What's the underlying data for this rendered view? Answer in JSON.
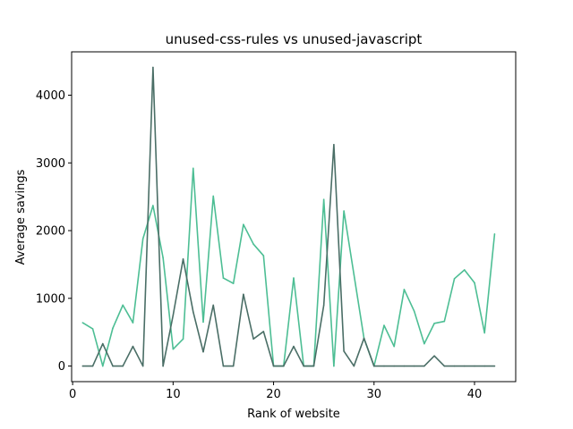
{
  "chart_data": {
    "type": "line",
    "title": "unused-css-rules vs unused-javascript",
    "xlabel": "Rank of website",
    "ylabel": "Average savings",
    "xlim": [
      -0.1,
      44.1
    ],
    "ylim": [
      -230,
      4640
    ],
    "xticks": [
      0,
      10,
      20,
      30,
      40
    ],
    "yticks": [
      0,
      1000,
      2000,
      3000,
      4000
    ],
    "grid": false,
    "x": [
      1,
      2,
      3,
      4,
      5,
      6,
      7,
      8,
      9,
      10,
      11,
      12,
      13,
      14,
      15,
      16,
      17,
      18,
      19,
      20,
      21,
      22,
      23,
      24,
      25,
      26,
      27,
      28,
      29,
      30,
      31,
      32,
      33,
      34,
      35,
      36,
      37,
      38,
      39,
      40,
      41,
      42
    ],
    "series": [
      {
        "color": "#4dbe94",
        "values": [
          640,
          550,
          0,
          560,
          900,
          640,
          1880,
          2370,
          1600,
          250,
          400,
          2920,
          650,
          2510,
          1300,
          1220,
          2090,
          1800,
          1630,
          0,
          0,
          1300,
          0,
          0,
          2460,
          0,
          2290,
          1350,
          410,
          0,
          600,
          290,
          1130,
          810,
          330,
          630,
          660,
          1290,
          1420,
          1230,
          490,
          1950
        ]
      },
      {
        "color": "#4a6e66",
        "values": [
          0,
          0,
          330,
          0,
          0,
          290,
          0,
          4410,
          0,
          750,
          1580,
          800,
          210,
          900,
          0,
          0,
          1060,
          400,
          510,
          0,
          0,
          290,
          0,
          0,
          900,
          3270,
          220,
          0,
          410,
          0,
          0,
          0,
          0,
          0,
          0,
          150,
          0,
          0,
          0,
          0,
          0,
          0
        ]
      }
    ]
  }
}
